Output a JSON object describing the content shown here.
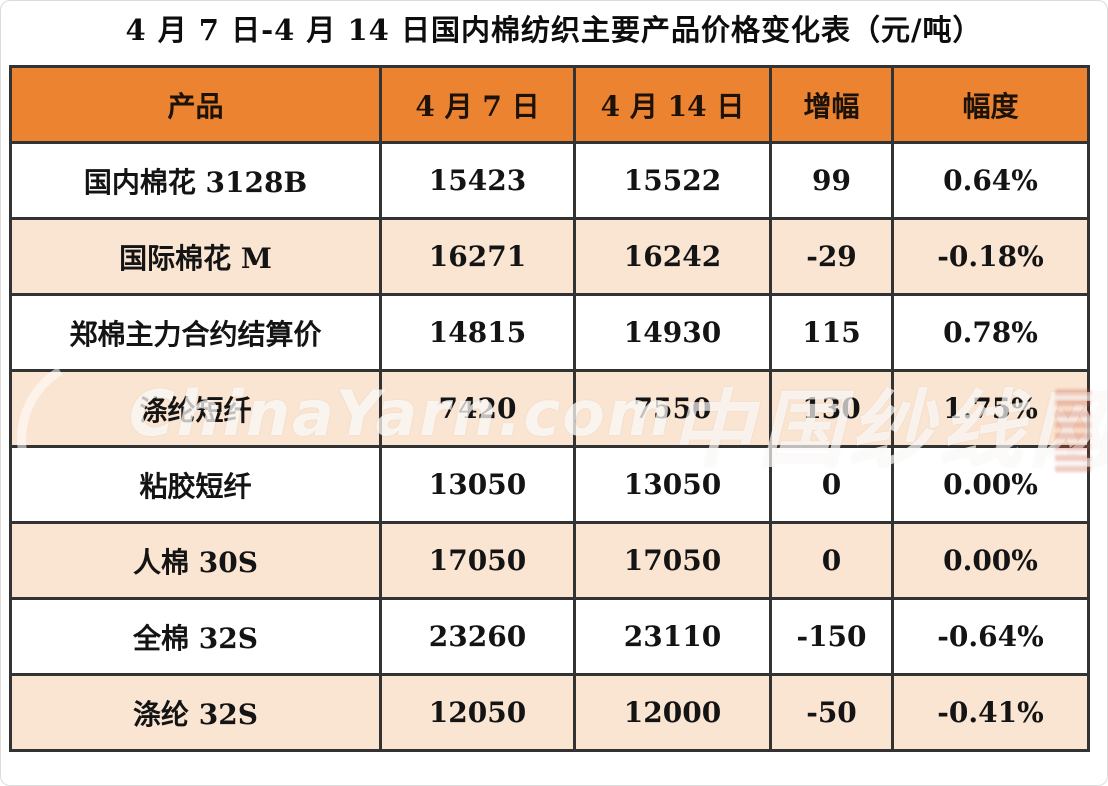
{
  "title": "4 月 7 日-4 月 14 日国内棉纺织主要产品价格变化表（元/吨）",
  "chart_data": {
    "type": "table",
    "title": "4 月 7 日-4 月 14 日国内棉纺织主要产品价格变化表（元/吨）",
    "unit": "元/吨",
    "columns": [
      "产品",
      "4 月 7 日",
      "4 月 14 日",
      "增幅",
      "幅度"
    ],
    "rows": [
      [
        "国内棉花 3128B",
        15423,
        15522,
        99,
        "0.64%"
      ],
      [
        "国际棉花 M",
        16271,
        16242,
        -29,
        "-0.18%"
      ],
      [
        "郑棉主力合约结算价",
        14815,
        14930,
        115,
        "0.78%"
      ],
      [
        "涤纶短纤",
        7420,
        7550,
        130,
        "1.75%"
      ],
      [
        "粘胶短纤",
        13050,
        13050,
        0,
        "0.00%"
      ],
      [
        "人棉 30S",
        17050,
        17050,
        0,
        "0.00%"
      ],
      [
        "全棉 32S",
        23260,
        23110,
        -150,
        "-0.64%"
      ],
      [
        "涤纶 32S",
        12050,
        12000,
        -50,
        "-0.41%"
      ]
    ]
  },
  "watermark": {
    "latin": "ChinaYarn.com",
    "cjk": "中国纱线网"
  },
  "colors": {
    "header_bg": "#EC8330",
    "row_alt_bg": "#FAE5D3",
    "row_bg": "#FFFFFF",
    "border": "#333333",
    "text": "#141414"
  }
}
